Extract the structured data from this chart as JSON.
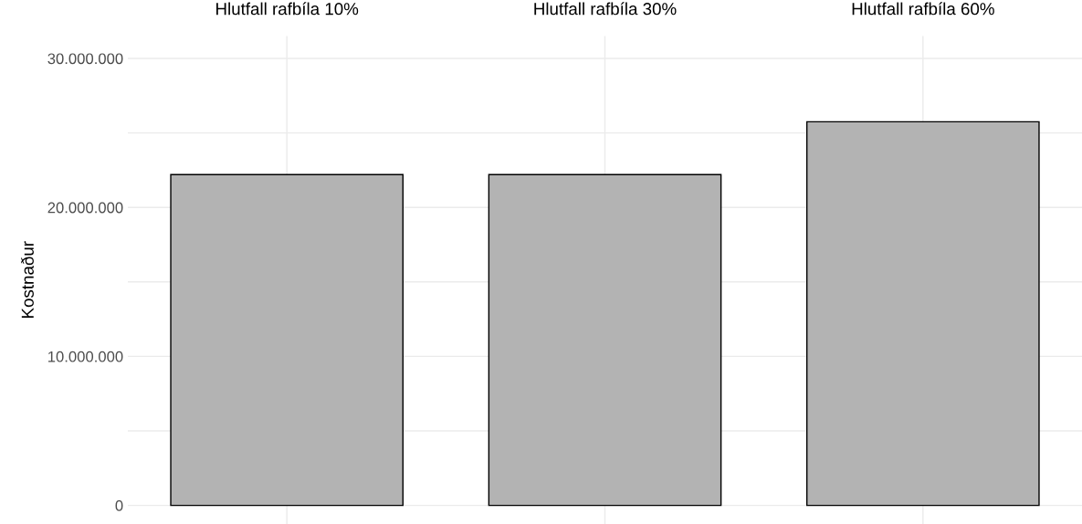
{
  "chart_data": {
    "type": "bar",
    "ylabel": "Kostnaður",
    "categories": [
      "Hlutfall rafbíla 10%",
      "Hlutfall rafbíla 30%",
      "Hlutfall rafbíla 60%"
    ],
    "values": [
      22200000,
      22200000,
      25750000
    ],
    "color": "#b3b3b3",
    "ylim": [
      -1250000,
      31500000
    ],
    "yticks": [
      {
        "value": 0,
        "label": "0"
      },
      {
        "value": 5000000,
        "label": null
      },
      {
        "value": 10000000,
        "label": "10.000.000"
      },
      {
        "value": 15000000,
        "label": null
      },
      {
        "value": 20000000,
        "label": "20.000.000"
      },
      {
        "value": 25000000,
        "label": null
      },
      {
        "value": 30000000,
        "label": "30.000.000"
      }
    ],
    "grid": true
  }
}
